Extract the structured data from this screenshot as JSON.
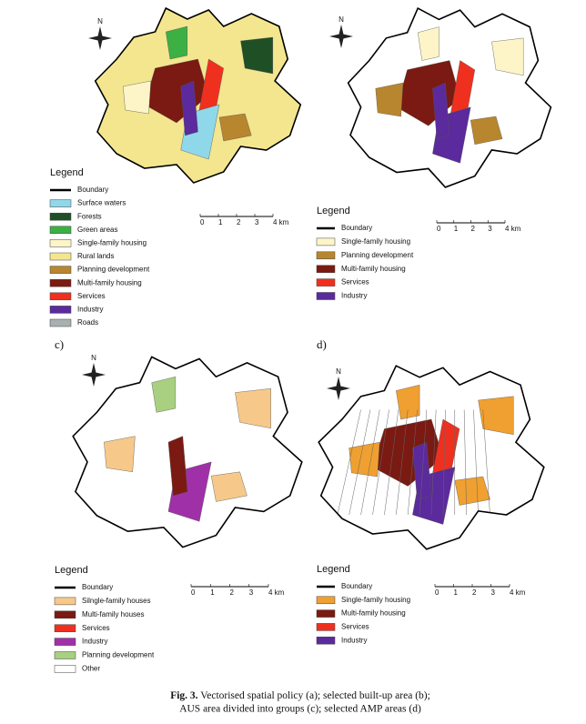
{
  "panels": [
    {
      "label": null,
      "north": "N",
      "legend_title": "Legend",
      "scale": [
        "0",
        "1",
        "2",
        "3",
        "4 km"
      ],
      "legend": [
        {
          "label": "Boundary",
          "color": "#000000"
        },
        {
          "label": "Surface waters",
          "color": "#8fd8ea"
        },
        {
          "label": "Forests",
          "color": "#1f4f25"
        },
        {
          "label": "Green areas",
          "color": "#3cb043"
        },
        {
          "label": "Single-family housing",
          "color": "#fdf5c8"
        },
        {
          "label": "Rural lands",
          "color": "#f3e68f"
        },
        {
          "label": "Planning development",
          "color": "#b8862e"
        },
        {
          "label": "Multi-family housing",
          "color": "#7a1a12"
        },
        {
          "label": "Services",
          "color": "#f0301e"
        },
        {
          "label": "Industry",
          "color": "#5b2a9c"
        },
        {
          "label": "Roads",
          "color": "#a8b0b0"
        }
      ]
    },
    {
      "label": null,
      "north": "N",
      "legend_title": "Legend",
      "scale": [
        "0",
        "1",
        "2",
        "3",
        "4 km"
      ],
      "legend": [
        {
          "label": "Boundary",
          "color": "#000000"
        },
        {
          "label": "Single-family housing",
          "color": "#fdf5c8"
        },
        {
          "label": "Planning development",
          "color": "#b8862e"
        },
        {
          "label": "Multi-family housing",
          "color": "#7a1a12"
        },
        {
          "label": "Services",
          "color": "#f0301e"
        },
        {
          "label": "Industry",
          "color": "#5b2a9c"
        }
      ]
    },
    {
      "label": "c)",
      "north": "N",
      "legend_title": "Legend",
      "scale": [
        "0",
        "1",
        "2",
        "3",
        "4 km"
      ],
      "legend": [
        {
          "label": "Boundary",
          "color": "#000000"
        },
        {
          "label": "Silngle-family houses",
          "color": "#f6c98a"
        },
        {
          "label": "Multi-family houses",
          "color": "#7a1a12"
        },
        {
          "label": "Services",
          "color": "#f0301e"
        },
        {
          "label": "Industry",
          "color": "#a030a8"
        },
        {
          "label": "Planning development",
          "color": "#a8d080"
        },
        {
          "label": "Other",
          "color": "#ffffff"
        }
      ]
    },
    {
      "label": "d)",
      "north": "N",
      "legend_title": "Legend",
      "scale": [
        "0",
        "1",
        "2",
        "3",
        "4 km"
      ],
      "legend": [
        {
          "label": "Boundary",
          "color": "#000000"
        },
        {
          "label": "Single-family housing",
          "color": "#f0a030"
        },
        {
          "label": "Multi-family housing",
          "color": "#7a1a12"
        },
        {
          "label": "Services",
          "color": "#f0301e"
        },
        {
          "label": "Industry",
          "color": "#5b2a9c"
        }
      ]
    }
  ],
  "caption": {
    "label": "Fig. 3.",
    "lines": [
      "Vectorised spatial policy (a);  selected built-up area (b);",
      "AUS area divided into groups (c); selected AMP areas (d)"
    ]
  }
}
